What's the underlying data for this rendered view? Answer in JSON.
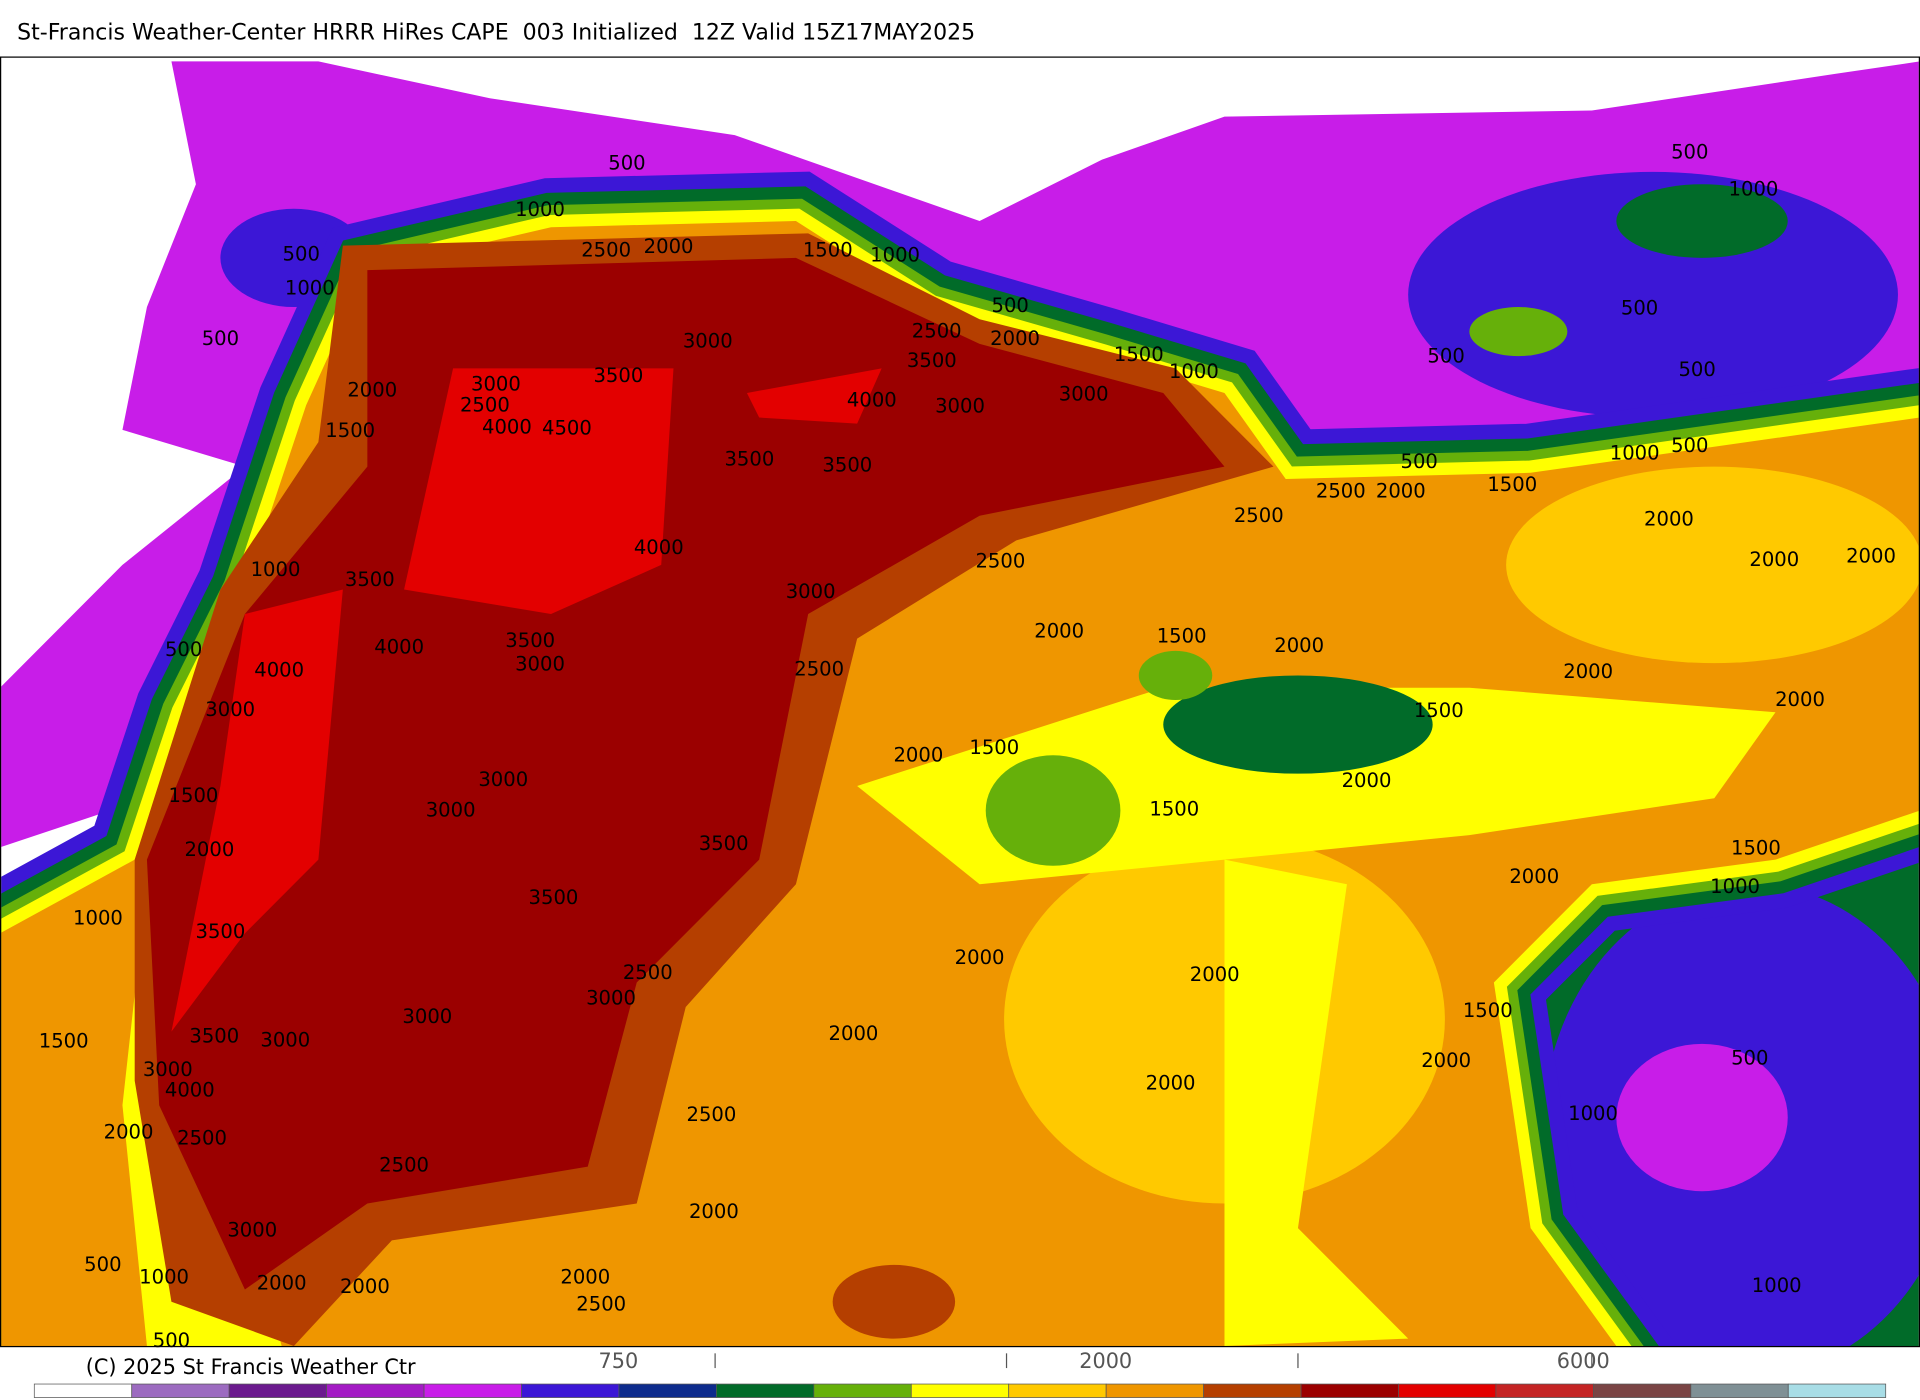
{
  "title": "St-Francis Weather-Center HRRR HiRes CAPE  003 Initialized  12Z Valid 15Z17MAY2025",
  "contour_labels": [
    "500",
    "1000",
    "500",
    "1000",
    "500",
    "2500",
    "2000",
    "1500",
    "1000",
    "500",
    "2500",
    "2000",
    "3500",
    "1500",
    "1000",
    "3000",
    "3000",
    "3500",
    "2500",
    "2000",
    "1500",
    "4000",
    "4500",
    "4000",
    "3000",
    "3000",
    "3500",
    "3500",
    "4000",
    "1000",
    "3500",
    "3000",
    "2500",
    "2500",
    "2500",
    "2000",
    "500",
    "1500",
    "1000",
    "500",
    "500",
    "1000",
    "500",
    "500",
    "500",
    "2000",
    "2000",
    "2000",
    "500",
    "4000",
    "4000",
    "3500",
    "3000",
    "2500",
    "2000",
    "1500",
    "2000",
    "2000",
    "2000",
    "1500",
    "3000",
    "2000",
    "1500",
    "1500",
    "3000",
    "3000",
    "2000",
    "1500",
    "2000",
    "3500",
    "1500",
    "2000",
    "1000",
    "1000",
    "3500",
    "3500",
    "2000",
    "2000",
    "2500",
    "3000",
    "1500",
    "3000",
    "3500",
    "3000",
    "1500",
    "2000",
    "2000",
    "500",
    "3000",
    "4000",
    "2000",
    "2500",
    "1000",
    "2000",
    "2500",
    "2500",
    "2000",
    "3000",
    "500",
    "1000",
    "2000",
    "2000",
    "2000",
    "2500",
    "1000",
    "500"
  ],
  "colorbar": {
    "labels": [
      "750",
      "2000",
      "6000"
    ]
  },
  "copyright": "(C) 2025 St Francis Weather Ctr"
}
